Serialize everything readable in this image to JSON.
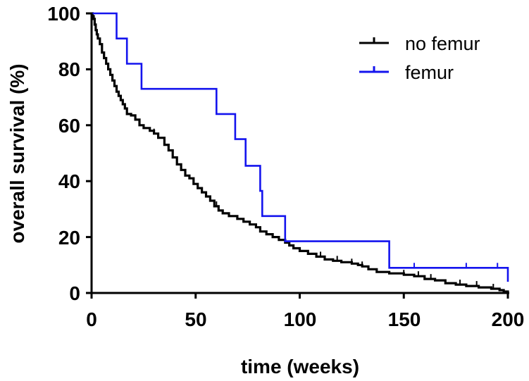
{
  "chart_data": {
    "type": "line",
    "subtype": "kaplan-meier step survival curve",
    "xlabel": "time (weeks)",
    "ylabel": "overall survival (%)",
    "xlim": [
      0,
      200
    ],
    "ylim": [
      0,
      100
    ],
    "x_ticks": [
      0,
      50,
      100,
      150,
      200
    ],
    "y_ticks": [
      0,
      20,
      40,
      60,
      80,
      100
    ],
    "grid": false,
    "legend_position": "top-right",
    "series": [
      {
        "name": "no femur",
        "color": "#000000",
        "points": [
          [
            0,
            100
          ],
          [
            0.5,
            99
          ],
          [
            1,
            98
          ],
          [
            1.5,
            96
          ],
          [
            2,
            94
          ],
          [
            2.5,
            92.5
          ],
          [
            3,
            91
          ],
          [
            4,
            89
          ],
          [
            5,
            86
          ],
          [
            6,
            84
          ],
          [
            7,
            82
          ],
          [
            8,
            80
          ],
          [
            9,
            78
          ],
          [
            10,
            76
          ],
          [
            11,
            74
          ],
          [
            12,
            72
          ],
          [
            13,
            70.5
          ],
          [
            14,
            69
          ],
          [
            15,
            67.5
          ],
          [
            16,
            66
          ],
          [
            17,
            64
          ],
          [
            19,
            63.5
          ],
          [
            21,
            62
          ],
          [
            23,
            60
          ],
          [
            25,
            59
          ],
          [
            28,
            58
          ],
          [
            30,
            57
          ],
          [
            32,
            55.5
          ],
          [
            35,
            53
          ],
          [
            37,
            51
          ],
          [
            39,
            48.5
          ],
          [
            41,
            46
          ],
          [
            43,
            44
          ],
          [
            45,
            42
          ],
          [
            47,
            41
          ],
          [
            49,
            39
          ],
          [
            51,
            37.5
          ],
          [
            53,
            36
          ],
          [
            55,
            34.5
          ],
          [
            57,
            33
          ],
          [
            59,
            31
          ],
          [
            61,
            29.5
          ],
          [
            63,
            28.5
          ],
          [
            66,
            27.5
          ],
          [
            70,
            26.5
          ],
          [
            73,
            25.5
          ],
          [
            76,
            24.5
          ],
          [
            79,
            23.5
          ],
          [
            81,
            22
          ],
          [
            84,
            21
          ],
          [
            87,
            20
          ],
          [
            90,
            19
          ],
          [
            93,
            18
          ],
          [
            95,
            17
          ],
          [
            97,
            16
          ],
          [
            100,
            15
          ],
          [
            104,
            14
          ],
          [
            108,
            13
          ],
          [
            112,
            12
          ],
          [
            116,
            11.5
          ],
          [
            120,
            11
          ],
          [
            125,
            10.5
          ],
          [
            128,
            10
          ],
          [
            130,
            9.5
          ],
          [
            133,
            8.5
          ],
          [
            137,
            7.5
          ],
          [
            143,
            7
          ],
          [
            150,
            6.5
          ],
          [
            155,
            6
          ],
          [
            160,
            5
          ],
          [
            165,
            4.5
          ],
          [
            170,
            3.5
          ],
          [
            175,
            3
          ],
          [
            180,
            2.5
          ],
          [
            186,
            2
          ],
          [
            192,
            1.5
          ],
          [
            196,
            1
          ],
          [
            198,
            0.5
          ],
          [
            200,
            0
          ]
        ]
      },
      {
        "name": "femur",
        "color": "#1414ee",
        "points": [
          [
            0,
            100
          ],
          [
            12,
            100
          ],
          [
            12,
            91
          ],
          [
            17,
            91
          ],
          [
            17,
            82
          ],
          [
            24,
            82
          ],
          [
            24,
            73
          ],
          [
            60,
            73
          ],
          [
            60,
            64
          ],
          [
            69,
            64
          ],
          [
            69,
            55
          ],
          [
            74,
            55
          ],
          [
            74,
            45.5
          ],
          [
            81,
            45.5
          ],
          [
            81,
            36.5
          ],
          [
            82,
            36.5
          ],
          [
            82,
            27.5
          ],
          [
            93,
            27.5
          ],
          [
            93,
            18.5
          ],
          [
            143,
            18.5
          ],
          [
            143,
            9
          ],
          [
            200,
            9
          ],
          [
            200,
            4
          ]
        ]
      }
    ]
  }
}
